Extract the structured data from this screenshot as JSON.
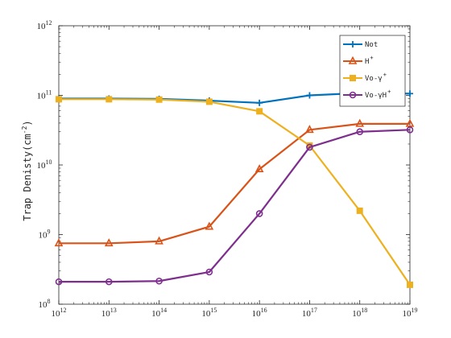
{
  "chart_data": {
    "type": "line",
    "title": "",
    "xlabel": "",
    "ylabel": "Trap Denisty(cm",
    "ylabel_exponent": "-2",
    "ylabel_suffix": ")",
    "x_scale": "log",
    "y_scale": "log",
    "xlim": [
      1000000000000.0,
      1e+19
    ],
    "ylim": [
      100000000.0,
      1000000000000.0
    ],
    "x_ticks": [
      {
        "base": "10",
        "exp": "12"
      },
      {
        "base": "10",
        "exp": "13"
      },
      {
        "base": "10",
        "exp": "14"
      },
      {
        "base": "10",
        "exp": "15"
      },
      {
        "base": "10",
        "exp": "16"
      },
      {
        "base": "10",
        "exp": "17"
      },
      {
        "base": "10",
        "exp": "18"
      },
      {
        "base": "10",
        "exp": "19"
      }
    ],
    "y_ticks": [
      {
        "base": "10",
        "exp": "8"
      },
      {
        "base": "10",
        "exp": "9"
      },
      {
        "base": "10",
        "exp": "10"
      },
      {
        "base": "10",
        "exp": "11"
      },
      {
        "base": "10",
        "exp": "12"
      }
    ],
    "grid": false,
    "legend_position": "top-right",
    "x": [
      1000000000000.0,
      10000000000000.0,
      100000000000000.0,
      1000000000000000.0,
      1e+16,
      1e+17,
      1e+18,
      1e+19
    ],
    "series": [
      {
        "name": "Not",
        "name_sup": "",
        "color": "#0072BD",
        "marker": "plus",
        "values": [
          90000000000.0,
          90000000000.0,
          89000000000.0,
          84000000000.0,
          78000000000.0,
          100000000000.0,
          108000000000.0,
          106000000000.0
        ]
      },
      {
        "name": "H",
        "name_sup": "+",
        "color": "#D95319",
        "marker": "triangle",
        "values": [
          750000000.0,
          750000000.0,
          800000000.0,
          1300000000.0,
          8700000000.0,
          32000000000.0,
          39000000000.0,
          39000000000.0
        ]
      },
      {
        "name": "Vo-γ",
        "name_sup": "+",
        "color": "#EDB120",
        "marker": "square",
        "values": [
          88000000000.0,
          88000000000.0,
          87000000000.0,
          81000000000.0,
          59000000000.0,
          19000000000.0,
          2200000000.0,
          190000000.0
        ]
      },
      {
        "name": "Vo-γH",
        "name_sup": "+",
        "color": "#7E2F8E",
        "marker": "circle",
        "values": [
          210000000.0,
          210000000.0,
          215000000.0,
          290000000.0,
          2000000000.0,
          18000000000.0,
          30000000000.0,
          32000000000.0
        ]
      }
    ]
  }
}
